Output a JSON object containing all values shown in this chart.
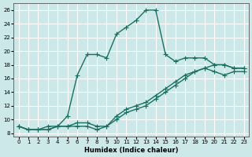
{
  "xlabel": "Humidex (Indice chaleur)",
  "ylabel": "",
  "bg_color": "#cce8e8",
  "line_color": "#1a7060",
  "grid_color": "#ffffff",
  "xlim": [
    -0.5,
    23.5
  ],
  "ylim": [
    7.5,
    27
  ],
  "xticks": [
    0,
    1,
    2,
    3,
    4,
    5,
    6,
    7,
    8,
    9,
    10,
    11,
    12,
    13,
    14,
    15,
    16,
    17,
    18,
    19,
    20,
    21,
    22,
    23
  ],
  "yticks": [
    8,
    10,
    12,
    14,
    16,
    18,
    20,
    22,
    24,
    26
  ],
  "line1_x": [
    0,
    1,
    2,
    3,
    4,
    5,
    6,
    7,
    8,
    9,
    10,
    11,
    12,
    13,
    14,
    15,
    16,
    17,
    18,
    19,
    20,
    21,
    22,
    23
  ],
  "line1_y": [
    9.0,
    8.5,
    8.5,
    8.5,
    9.0,
    9.0,
    9.0,
    9.0,
    8.5,
    9.0,
    10.0,
    11.0,
    11.5,
    12.0,
    13.0,
    14.0,
    15.0,
    16.0,
    17.0,
    17.5,
    17.0,
    16.5,
    17.0,
    17.0
  ],
  "line2_x": [
    0,
    1,
    2,
    3,
    4,
    5,
    6,
    7,
    8,
    9,
    10,
    11,
    12,
    13,
    14,
    15,
    16,
    17,
    18,
    19,
    20,
    21,
    22,
    23
  ],
  "line2_y": [
    9.0,
    8.5,
    8.5,
    8.5,
    9.0,
    9.0,
    9.5,
    9.5,
    9.0,
    9.0,
    10.5,
    11.5,
    12.0,
    12.5,
    13.5,
    14.5,
    15.5,
    16.5,
    17.0,
    17.5,
    18.0,
    18.0,
    17.5,
    17.5
  ],
  "line3_x": [
    0,
    1,
    2,
    3,
    4,
    5,
    6,
    7,
    8,
    9,
    10,
    11,
    12,
    13,
    14,
    15,
    16,
    17,
    18,
    19,
    20,
    21,
    22,
    23
  ],
  "line3_y": [
    9.0,
    8.5,
    8.5,
    9.0,
    9.0,
    10.5,
    16.5,
    19.5,
    19.5,
    19.0,
    22.5,
    23.5,
    24.5,
    26.0,
    26.0,
    19.5,
    18.5,
    19.0,
    19.0,
    19.0,
    18.0,
    18.0,
    17.5,
    17.5
  ],
  "marker": "+",
  "markersize": 4,
  "linewidth": 1.0
}
